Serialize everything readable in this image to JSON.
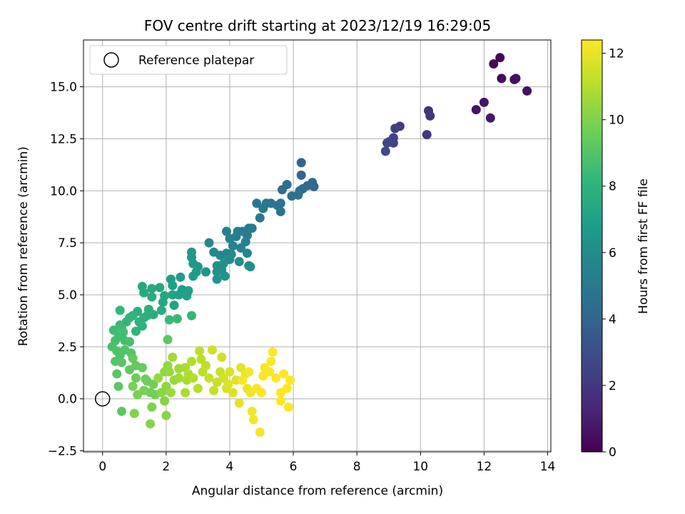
{
  "chart_data": {
    "type": "scatter",
    "title": "FOV centre drift starting at 2023/12/19 16:29:05",
    "xlabel": "Angular distance from reference (arcmin)",
    "ylabel": "Rotation from reference (arcmin)",
    "xlim": [
      -0.6,
      14.1
    ],
    "ylim": [
      -2.55,
      17.25
    ],
    "xticks": [
      0,
      2,
      4,
      6,
      8,
      10,
      12,
      14
    ],
    "yticks": [
      -2.5,
      0.0,
      2.5,
      5.0,
      7.5,
      10.0,
      12.5,
      15.0
    ],
    "xtick_labels": [
      "0",
      "2",
      "4",
      "6",
      "8",
      "10",
      "12",
      "14"
    ],
    "ytick_labels": [
      "−2.5",
      "0.0",
      "2.5",
      "5.0",
      "7.5",
      "10.0",
      "12.5",
      "15.0"
    ],
    "grid": true,
    "legend": {
      "placement": "top-left",
      "entries": [
        "Reference platepar"
      ]
    },
    "reference_point": {
      "label": "Reference platepar",
      "x": 0.0,
      "y": 0.0,
      "marker": "open-circle"
    },
    "colorbar": {
      "label": "Hours from first FF file",
      "colormap": "viridis",
      "range": [
        0,
        12.4
      ],
      "ticks": [
        0,
        2,
        4,
        6,
        8,
        10,
        12
      ],
      "tick_labels": [
        "0",
        "2",
        "4",
        "6",
        "8",
        "10",
        "12"
      ],
      "stops": [
        "#440154",
        "#482878",
        "#3e4989",
        "#31688e",
        "#26828e",
        "#1f9e89",
        "#35b779",
        "#6ece58",
        "#b5de2b",
        "#fde725"
      ]
    },
    "series": [
      {
        "points": [
          [
            12.5,
            16.4,
            0.1
          ],
          [
            12.3,
            16.1,
            0.2
          ],
          [
            12.55,
            15.4,
            0.3
          ],
          [
            12.95,
            15.35,
            0.4
          ],
          [
            13.0,
            15.4,
            0.45
          ],
          [
            13.35,
            14.8,
            0.55
          ],
          [
            11.75,
            13.9,
            0.6
          ],
          [
            12.0,
            14.25,
            0.7
          ],
          [
            12.2,
            13.5,
            0.8
          ],
          [
            10.25,
            13.85,
            1.8
          ],
          [
            10.3,
            13.6,
            1.9
          ],
          [
            10.2,
            12.7,
            2.0
          ],
          [
            9.35,
            13.1,
            2.2
          ],
          [
            9.2,
            13.0,
            2.3
          ],
          [
            9.15,
            12.55,
            2.4
          ],
          [
            9.15,
            12.3,
            2.5
          ],
          [
            9.0,
            12.35,
            2.6
          ],
          [
            8.95,
            12.3,
            2.7
          ],
          [
            8.9,
            11.9,
            2.8
          ],
          [
            6.25,
            11.35,
            4.0
          ],
          [
            6.25,
            10.75,
            4.1
          ],
          [
            6.6,
            10.4,
            4.2
          ],
          [
            6.65,
            10.2,
            4.25
          ],
          [
            6.45,
            10.25,
            4.3
          ],
          [
            6.3,
            10.1,
            4.35
          ],
          [
            6.2,
            10.0,
            4.4
          ],
          [
            6.15,
            9.8,
            4.45
          ],
          [
            5.8,
            10.3,
            4.5
          ],
          [
            5.65,
            10.05,
            4.55
          ],
          [
            5.95,
            9.75,
            4.6
          ],
          [
            5.6,
            9.4,
            4.65
          ],
          [
            5.5,
            9.3,
            4.7
          ],
          [
            5.6,
            9.0,
            4.75
          ],
          [
            5.3,
            9.4,
            4.8
          ],
          [
            5.15,
            9.4,
            4.85
          ],
          [
            4.85,
            9.4,
            4.9
          ],
          [
            5.05,
            9.15,
            4.95
          ],
          [
            4.95,
            8.7,
            5.0
          ],
          [
            4.7,
            8.2,
            5.05
          ],
          [
            4.6,
            8.2,
            5.1
          ],
          [
            4.55,
            7.85,
            5.15
          ],
          [
            4.4,
            8.05,
            5.2
          ],
          [
            4.5,
            7.55,
            5.25
          ],
          [
            4.25,
            8.05,
            5.3
          ],
          [
            4.2,
            7.8,
            5.35
          ],
          [
            4.0,
            7.7,
            5.4
          ],
          [
            3.9,
            8.05,
            5.45
          ],
          [
            4.1,
            7.35,
            5.5
          ],
          [
            4.35,
            7.25,
            5.55
          ],
          [
            4.55,
            7.0,
            5.6
          ],
          [
            3.9,
            7.0,
            5.65
          ],
          [
            3.7,
            6.9,
            5.7
          ],
          [
            3.5,
            7.05,
            5.75
          ],
          [
            3.35,
            7.5,
            5.8
          ],
          [
            4.0,
            6.7,
            5.85
          ],
          [
            4.05,
            6.95,
            5.9
          ],
          [
            3.95,
            6.7,
            5.95
          ],
          [
            4.3,
            6.6,
            6.0
          ],
          [
            4.6,
            6.4,
            6.05
          ],
          [
            4.65,
            6.35,
            6.1
          ],
          [
            3.8,
            6.5,
            6.15
          ],
          [
            3.6,
            6.4,
            6.2
          ],
          [
            3.75,
            6.2,
            6.25
          ],
          [
            3.6,
            6.1,
            6.3
          ],
          [
            3.85,
            5.9,
            6.35
          ],
          [
            3.6,
            5.75,
            6.4
          ],
          [
            3.25,
            6.1,
            6.45
          ],
          [
            3.0,
            6.35,
            6.5
          ],
          [
            2.8,
            6.8,
            6.55
          ],
          [
            2.8,
            7.05,
            6.6
          ],
          [
            2.85,
            6.5,
            6.65
          ],
          [
            2.95,
            6.1,
            6.7
          ],
          [
            2.85,
            5.9,
            6.75
          ],
          [
            2.45,
            5.85,
            6.8
          ],
          [
            2.15,
            5.75,
            6.85
          ],
          [
            2.2,
            5.45,
            6.9
          ],
          [
            2.5,
            5.25,
            6.95
          ],
          [
            2.4,
            5.0,
            7.0
          ],
          [
            2.7,
            5.2,
            7.05
          ],
          [
            2.65,
            4.95,
            7.1
          ],
          [
            2.2,
            5.0,
            7.15
          ],
          [
            2.25,
            4.5,
            7.2
          ],
          [
            1.95,
            4.95,
            7.25
          ],
          [
            1.9,
            4.65,
            7.3
          ],
          [
            1.8,
            5.35,
            7.35
          ],
          [
            1.55,
            5.3,
            7.4
          ],
          [
            1.25,
            5.4,
            7.45
          ],
          [
            1.3,
            5.1,
            7.5
          ],
          [
            1.55,
            4.9,
            7.55
          ],
          [
            1.85,
            4.25,
            7.6
          ],
          [
            1.6,
            4.05,
            7.65
          ],
          [
            1.45,
            4.3,
            7.7
          ],
          [
            1.4,
            4.0,
            7.75
          ],
          [
            1.3,
            3.9,
            7.8
          ],
          [
            1.1,
            4.2,
            7.85
          ],
          [
            1.15,
            3.7,
            7.9
          ],
          [
            1.25,
            3.5,
            7.95
          ],
          [
            1.05,
            3.25,
            8.0
          ],
          [
            0.95,
            4.0,
            8.05
          ],
          [
            0.85,
            3.9,
            8.1
          ],
          [
            0.75,
            3.7,
            8.15
          ],
          [
            0.55,
            4.25,
            8.2
          ],
          [
            2.8,
            4.0,
            8.25
          ],
          [
            2.1,
            3.8,
            8.3
          ],
          [
            2.35,
            3.85,
            8.35
          ],
          [
            0.55,
            3.55,
            8.4
          ],
          [
            0.6,
            3.4,
            8.45
          ],
          [
            0.35,
            3.3,
            8.5
          ],
          [
            0.5,
            3.0,
            8.55
          ],
          [
            0.65,
            3.2,
            8.6
          ],
          [
            0.7,
            2.8,
            8.65
          ],
          [
            0.4,
            2.8,
            8.7
          ],
          [
            0.85,
            2.75,
            8.75
          ],
          [
            0.3,
            2.5,
            8.8
          ],
          [
            0.45,
            2.3,
            8.85
          ],
          [
            0.55,
            2.1,
            8.9
          ],
          [
            0.7,
            2.35,
            8.95
          ],
          [
            0.9,
            2.2,
            9.0
          ],
          [
            0.4,
            1.8,
            9.05
          ],
          [
            0.6,
            1.75,
            9.1
          ],
          [
            0.45,
            1.2,
            9.15
          ],
          [
            0.5,
            0.6,
            9.2
          ],
          [
            0.6,
            -0.6,
            9.25
          ],
          [
            2.05,
            2.85,
            9.25
          ],
          [
            0.85,
            1.4,
            9.3
          ],
          [
            0.95,
            1.95,
            9.35
          ],
          [
            1.05,
            1.6,
            9.4
          ],
          [
            1.25,
            1.5,
            9.45
          ],
          [
            1.05,
            1.0,
            9.5
          ],
          [
            1.35,
            0.95,
            9.55
          ],
          [
            1.4,
            0.85,
            9.6
          ],
          [
            1.6,
            0.7,
            9.65
          ],
          [
            1.5,
            0.3,
            9.7
          ],
          [
            1.65,
            0.2,
            9.75
          ],
          [
            1.3,
            0.4,
            9.8
          ],
          [
            0.95,
            0.6,
            9.85
          ],
          [
            1.1,
            0.2,
            9.9
          ],
          [
            1.0,
            -0.7,
            9.95
          ],
          [
            1.55,
            -0.4,
            10.0
          ],
          [
            1.5,
            -1.2,
            10.05
          ],
          [
            1.95,
            -0.1,
            10.1
          ],
          [
            2.0,
            -0.8,
            10.15
          ],
          [
            1.85,
            0.3,
            10.2
          ],
          [
            2.0,
            0.6,
            10.25
          ],
          [
            1.95,
            1.3,
            10.3
          ],
          [
            2.05,
            1.6,
            10.35
          ],
          [
            1.75,
            1.0,
            10.4
          ],
          [
            2.25,
            0.9,
            10.45
          ],
          [
            2.1,
            1.3,
            10.5
          ],
          [
            2.15,
            0.3,
            10.55
          ],
          [
            2.4,
            1.45,
            10.6
          ],
          [
            2.2,
            2.0,
            10.65
          ],
          [
            2.4,
            1.0,
            10.7
          ],
          [
            2.6,
            1.5,
            10.75
          ],
          [
            2.65,
            0.9,
            10.8
          ],
          [
            2.6,
            0.3,
            10.85
          ],
          [
            2.7,
            1.2,
            10.9
          ],
          [
            2.8,
            1.8,
            10.95
          ],
          [
            2.85,
            1.0,
            11.0
          ],
          [
            3.0,
            0.5,
            11.05
          ],
          [
            3.15,
            1.3,
            11.1
          ],
          [
            3.05,
            2.3,
            11.15
          ],
          [
            3.1,
            1.9,
            11.2
          ],
          [
            3.25,
            1.6,
            11.25
          ],
          [
            3.5,
            0.4,
            11.3
          ],
          [
            3.35,
            1.0,
            11.35
          ],
          [
            3.6,
            0.8,
            11.4
          ],
          [
            3.7,
            1.3,
            11.45
          ],
          [
            3.45,
            2.35,
            11.5
          ],
          [
            3.75,
            2.0,
            11.55
          ],
          [
            3.8,
            1.0,
            11.6
          ],
          [
            3.9,
            0.5,
            11.65
          ],
          [
            4.0,
            1.3,
            11.7
          ],
          [
            3.95,
            0.7,
            11.75
          ],
          [
            4.1,
            0.3,
            11.8
          ],
          [
            4.2,
            0.9,
            11.85
          ],
          [
            4.35,
            1.5,
            11.9
          ],
          [
            4.3,
            -0.2,
            11.95
          ],
          [
            4.55,
            0.5,
            12.0
          ],
          [
            4.5,
            1.2,
            12.05
          ],
          [
            4.65,
            0.3,
            12.1
          ],
          [
            4.7,
            -0.6,
            12.15
          ],
          [
            4.75,
            -1.0,
            12.2
          ],
          [
            4.95,
            -1.6,
            12.25
          ],
          [
            5.0,
            0.3,
            12.3
          ],
          [
            5.1,
            1.5,
            12.3
          ],
          [
            5.3,
            1.8,
            12.35
          ],
          [
            5.35,
            2.25,
            12.35
          ],
          [
            5.45,
            1.0,
            12.35
          ],
          [
            5.6,
            0.3,
            12.38
          ],
          [
            5.7,
            1.2,
            12.38
          ],
          [
            5.8,
            0.5,
            12.4
          ],
          [
            5.85,
            -0.4,
            12.4
          ],
          [
            5.9,
            0.9,
            12.4
          ],
          [
            5.6,
            -0.1,
            12.4
          ],
          [
            5.25,
            1.3,
            12.38
          ],
          [
            5.05,
            1.1,
            12.35
          ],
          [
            4.85,
            0.5,
            12.3
          ],
          [
            4.6,
            1.3,
            12.25
          ],
          [
            4.4,
            0.9,
            12.2
          ]
        ]
      }
    ]
  }
}
